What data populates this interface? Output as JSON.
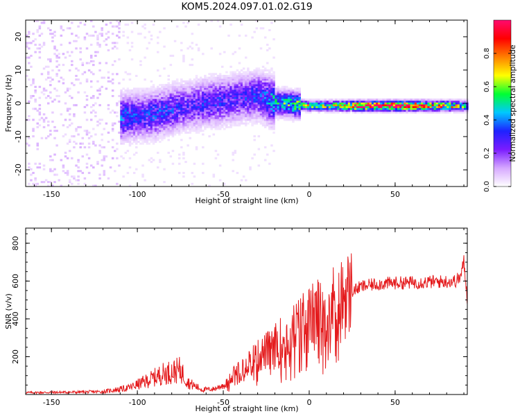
{
  "title": "KOM5.2024.097.01.02.G19",
  "colors": {
    "snr_line": "#e41a1c",
    "colormap": [
      "#ffffff",
      "#d6a8ff",
      "#7b1cff",
      "#1e22ff",
      "#00c8ff",
      "#00ff33",
      "#ffff00",
      "#ff8000",
      "#ff0000",
      "#ff0a6e"
    ]
  },
  "chart_data": [
    {
      "type": "heatmap",
      "title": "KOM5.2024.097.01.02.G19",
      "xlabel": "Height of straight line (km)",
      "ylabel": "Frequency (Hz)",
      "xlim": [
        -165,
        92
      ],
      "ylim": [
        -25,
        25
      ],
      "xticks": [
        -150,
        -100,
        -50,
        0,
        50
      ],
      "yticks": [
        -20,
        -10,
        0,
        10,
        20
      ],
      "colorbar": {
        "label": "Normalized spectral amplitude",
        "range": [
          0,
          1
        ],
        "ticks": [
          "0.0",
          "0.2",
          "0.4",
          "0.6",
          "0.8"
        ],
        "tick_values": [
          0,
          0.2,
          0.4,
          0.6,
          0.8
        ]
      },
      "ridge": {
        "description": "dominant frequency trace vs height",
        "x": [
          -110,
          -100,
          -90,
          -80,
          -70,
          -60,
          -50,
          -40,
          -30,
          -20,
          -10,
          0,
          10,
          20,
          30,
          40,
          50,
          60,
          70,
          80,
          90
        ],
        "freq": [
          -4.5,
          -4,
          -3.5,
          -2,
          -1,
          0,
          0.5,
          1.5,
          2,
          0,
          -0.5,
          -1,
          -1,
          -1,
          -1,
          -1,
          -1,
          -1,
          -1,
          -1,
          -1
        ],
        "amplitude": [
          0.35,
          0.3,
          0.32,
          0.3,
          0.25,
          0.3,
          0.28,
          0.28,
          0.3,
          0.45,
          0.55,
          0.6,
          0.6,
          0.7,
          0.95,
          0.95,
          0.95,
          0.95,
          0.8,
          0.75,
          0.5
        ]
      }
    },
    {
      "type": "line",
      "xlabel": "Height of straight line (km)",
      "ylabel": "SNR (v/v)",
      "xlim": [
        -165,
        92
      ],
      "ylim": [
        0,
        880
      ],
      "xticks": [
        -150,
        -100,
        -50,
        0,
        50
      ],
      "yticks": [
        200,
        400,
        600,
        800
      ],
      "series": [
        {
          "envelope_x": [
            -165,
            -140,
            -120,
            -105,
            -95,
            -85,
            -75,
            -70,
            -62,
            -55,
            -48,
            -40,
            -30,
            -20,
            -10,
            0,
            10,
            20,
            30,
            40,
            50,
            60,
            70,
            80,
            85,
            88,
            90,
            92
          ],
          "envelope_y": [
            10,
            12,
            15,
            35,
            70,
            110,
            130,
            60,
            25,
            30,
            60,
            150,
            200,
            260,
            330,
            400,
            450,
            520,
            570,
            585,
            590,
            592,
            595,
            598,
            600,
            620,
            700,
            500
          ]
        }
      ]
    }
  ]
}
